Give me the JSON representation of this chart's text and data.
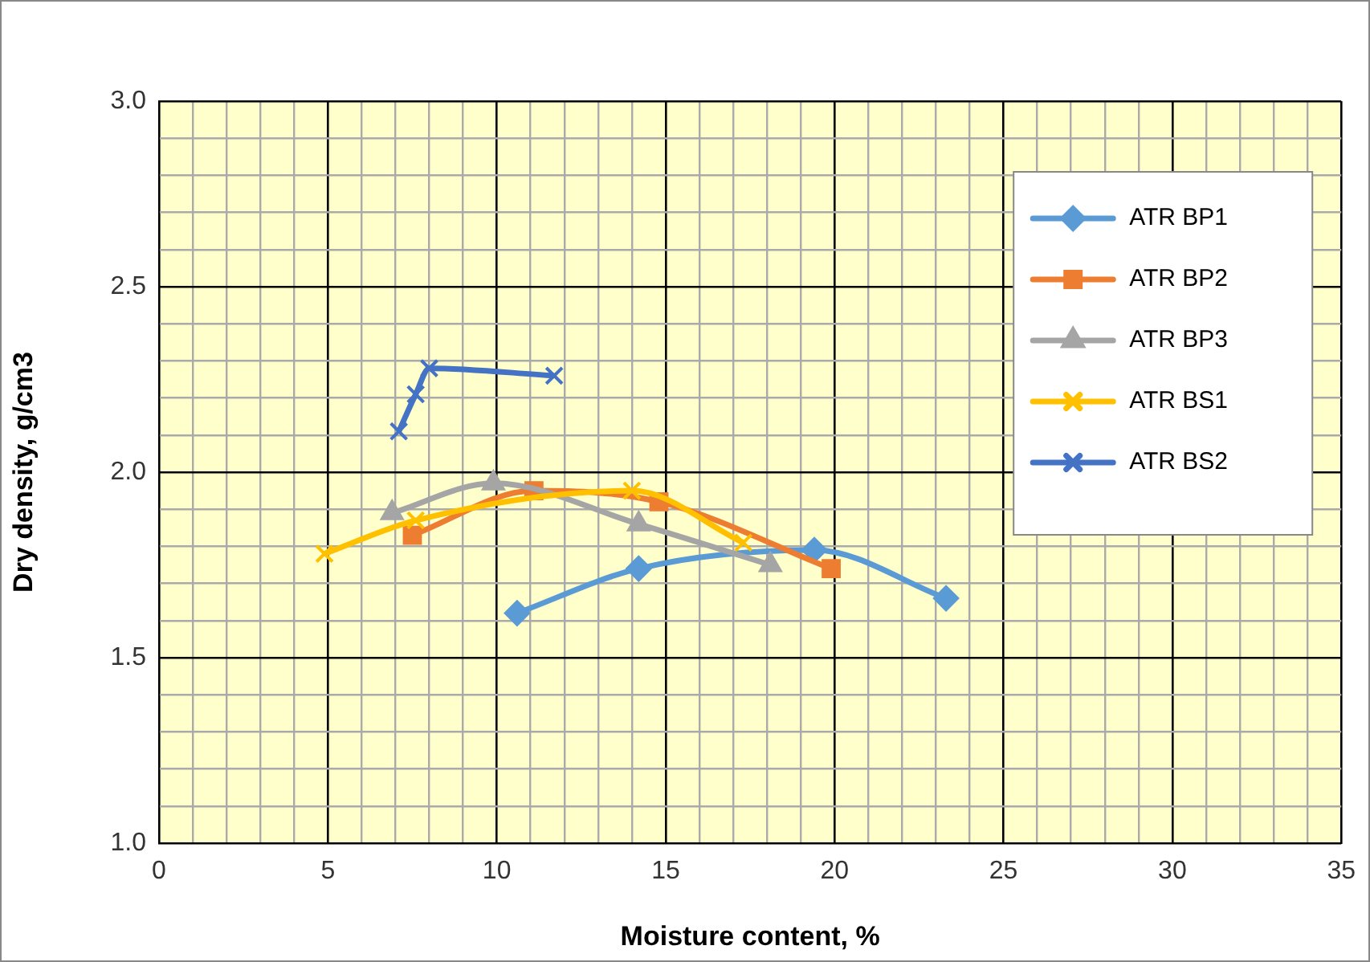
{
  "chart_data": {
    "type": "line",
    "xlabel": "Moisture content, %",
    "ylabel": "Dry density, g/cm3",
    "xlim": [
      0,
      35
    ],
    "ylim": [
      1.0,
      3.0
    ],
    "xticks": [
      0,
      {
        "value": 1,
        "label": null
      },
      {
        "value": 2,
        "label": null
      },
      {
        "value": 3,
        "label": null
      },
      {
        "value": 4,
        "label": null
      },
      5,
      {
        "value": 6,
        "label": null
      },
      {
        "value": 7,
        "label": null
      },
      {
        "value": 8,
        "label": null
      },
      {
        "value": 9,
        "label": null
      },
      10,
      {
        "value": 11,
        "label": null
      },
      {
        "value": 12,
        "label": null
      },
      {
        "value": 13,
        "label": null
      },
      {
        "value": 14,
        "label": null
      },
      15,
      {
        "value": 16,
        "label": null
      },
      {
        "value": 17,
        "label": null
      },
      {
        "value": 18,
        "label": null
      },
      {
        "value": 19,
        "label": null
      },
      20,
      {
        "value": 21,
        "label": null
      },
      {
        "value": 22,
        "label": null
      },
      {
        "value": 23,
        "label": null
      },
      {
        "value": 24,
        "label": null
      },
      25,
      {
        "value": 26,
        "label": null
      },
      {
        "value": 27,
        "label": null
      },
      {
        "value": 28,
        "label": null
      },
      {
        "value": 29,
        "label": null
      },
      30,
      {
        "value": 31,
        "label": null
      },
      {
        "value": 32,
        "label": null
      },
      {
        "value": 33,
        "label": null
      },
      {
        "value": 34,
        "label": null
      },
      35
    ],
    "yticks": [
      {
        "value": 1.0,
        "label": "1.0"
      },
      {
        "value": 1.1,
        "label": null
      },
      {
        "value": 1.2,
        "label": null
      },
      {
        "value": 1.3,
        "label": null
      },
      {
        "value": 1.4,
        "label": null
      },
      1.5,
      {
        "value": 1.6,
        "label": null
      },
      {
        "value": 1.7,
        "label": null
      },
      {
        "value": 1.8,
        "label": null
      },
      {
        "value": 1.9,
        "label": null
      },
      {
        "value": 2.0,
        "label": "2.0"
      },
      {
        "value": 2.1,
        "label": null
      },
      {
        "value": 2.2,
        "label": null
      },
      {
        "value": 2.3,
        "label": null
      },
      {
        "value": 2.4,
        "label": null
      },
      2.5,
      {
        "value": 2.6,
        "label": null
      },
      {
        "value": 2.7,
        "label": null
      },
      {
        "value": 2.8,
        "label": null
      },
      {
        "value": 2.9,
        "label": null
      },
      {
        "value": 3.0,
        "label": "3.0"
      }
    ],
    "grid": true,
    "legend": "top right",
    "series": [
      {
        "name": "ATR BP1",
        "color": "#5b9bd5",
        "marker": "diamond",
        "x": [
          10.6,
          14.2,
          19.4,
          23.3
        ],
        "values": [
          1.62,
          1.74,
          1.79,
          1.66
        ]
      },
      {
        "name": "ATR BP2",
        "color": "#ed7d31",
        "marker": "square",
        "x": [
          7.5,
          11.1,
          14.8,
          19.9
        ],
        "values": [
          1.83,
          1.95,
          1.92,
          1.74
        ]
      },
      {
        "name": "ATR BP3",
        "color": "#a5a5a5",
        "marker": "triangle",
        "x": [
          6.9,
          9.9,
          14.2,
          18.1
        ],
        "values": [
          1.89,
          1.97,
          1.86,
          1.75
        ]
      },
      {
        "name": "ATR BS1",
        "color": "#ffc000",
        "marker": "cross",
        "x": [
          4.9,
          7.6,
          14.0,
          17.3
        ],
        "values": [
          1.78,
          1.87,
          1.95,
          1.81
        ]
      },
      {
        "name": "ATR BS2",
        "color": "#4472c4",
        "marker": "cross",
        "x": [
          7.1,
          7.6,
          8.0,
          11.7
        ],
        "values": [
          2.11,
          2.21,
          2.28,
          2.26
        ]
      }
    ]
  }
}
